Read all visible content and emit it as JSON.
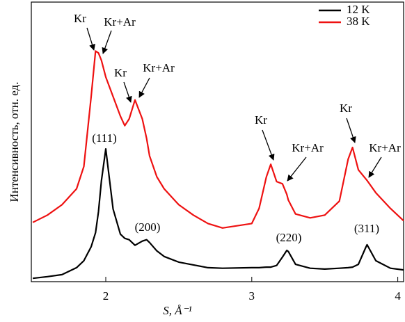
{
  "chart_data": {
    "type": "line",
    "xlabel": "S, Å⁻¹",
    "ylabel": "Интенсивность, отн. ед.",
    "x": [
      1.5,
      1.6,
      1.7,
      1.8,
      1.85,
      1.9,
      1.93,
      1.95,
      1.97,
      2.0,
      2.05,
      2.1,
      2.13,
      2.16,
      2.2,
      2.25,
      2.28,
      2.3,
      2.35,
      2.4,
      2.5,
      2.6,
      2.7,
      2.8,
      3.0,
      3.05,
      3.1,
      3.13,
      3.17,
      3.21,
      3.24,
      3.25,
      3.3,
      3.4,
      3.5,
      3.6,
      3.66,
      3.69,
      3.73,
      3.78,
      3.79,
      3.85,
      3.95,
      4.04
    ],
    "series": [
      {
        "name": "12 K",
        "color": "#000000",
        "values": [
          1.2,
          1.8,
          2.5,
          5,
          7.5,
          12.5,
          17.5,
          25,
          36,
          47.5,
          26,
          17,
          15.5,
          15,
          13,
          14.5,
          15,
          14,
          11,
          9,
          7,
          6,
          5,
          4.8,
          5,
          5,
          5.2,
          5.2,
          5.8,
          8.8,
          11.2,
          10.8,
          6.2,
          4.8,
          4.5,
          4.8,
          5,
          5.2,
          6.2,
          12.2,
          13.2,
          7.5,
          4.8,
          4.2
        ]
      },
      {
        "name": "38 K",
        "color": "#ee1111",
        "values": [
          21.2,
          23.8,
          27.5,
          33.2,
          41.2,
          66.2,
          82.5,
          81.8,
          79.2,
          73.2,
          66.2,
          59.2,
          55.8,
          58.2,
          65,
          58.2,
          51.2,
          45,
          37.5,
          33.2,
          27.5,
          23.8,
          20.8,
          19.2,
          20.8,
          26.2,
          37.5,
          42,
          35.8,
          35,
          31.2,
          29.2,
          24.2,
          22.8,
          23.8,
          28.8,
          43.8,
          48,
          40,
          36.8,
          36.2,
          31.8,
          26.2,
          21.8
        ]
      }
    ],
    "annotations": [
      "Kr",
      "Kr+Ar",
      "Kr",
      "Kr+Ar",
      "Kr",
      "Kr+Ar",
      "Kr",
      "Kr+Ar",
      "(111)",
      "(200)",
      "(220)",
      "(311)"
    ],
    "xlim": [
      1.49,
      4.04
    ],
    "xticks": [
      2,
      3,
      4
    ],
    "ylim": [
      0,
      100
    ],
    "legend": "upper-right"
  }
}
